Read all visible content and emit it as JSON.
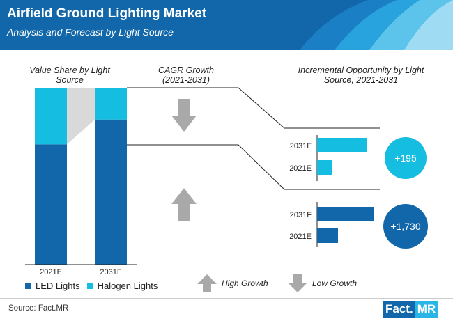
{
  "header": {
    "title": "Airfield Ground Lighting Market",
    "subtitle": "Analysis and Forecast by Light Source"
  },
  "columns": {
    "value_share": "Value Share by Light Source",
    "cagr": "CAGR Growth (2021-2031)",
    "incremental": "Incremental Opportunity by Light Source, 2021-2031"
  },
  "colors": {
    "led": "#1167a9",
    "halogen": "#15bde0",
    "arrow_gray": "#a9a9a9",
    "connector_gray": "#d9d9d9"
  },
  "chart_data": [
    {
      "type": "bar",
      "subtype": "stacked-100",
      "categories": [
        "2021E",
        "2031F"
      ],
      "series": [
        {
          "name": "LED Lights",
          "values": [
            68,
            82
          ]
        },
        {
          "name": "Halogen Lights",
          "values": [
            32,
            18
          ]
        }
      ],
      "ylim": [
        0,
        100
      ]
    },
    {
      "type": "bar",
      "orientation": "horizontal",
      "series_name": "Halogen Lights",
      "categories": [
        "2031F",
        "2021E"
      ],
      "values": [
        72,
        22
      ],
      "incremental_opportunity": "+195",
      "cagr_direction": "Low Growth"
    },
    {
      "type": "bar",
      "orientation": "horizontal",
      "series_name": "LED Lights",
      "categories": [
        "2031F",
        "2021E"
      ],
      "values": [
        82,
        30
      ],
      "incremental_opportunity": "+1,730",
      "cagr_direction": "High Growth"
    }
  ],
  "legend": {
    "led": "LED Lights",
    "halogen": "Halogen Lights"
  },
  "key": {
    "high": "High Growth",
    "low": "Low Growth"
  },
  "footer": {
    "source": "Source: Fact.MR",
    "logo_part1": "Fact.",
    "logo_part2": "MR"
  }
}
